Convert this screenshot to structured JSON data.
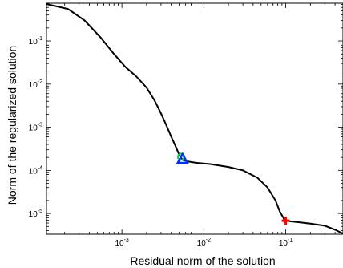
{
  "chart_data": {
    "type": "line",
    "title": "",
    "xlabel": "Residual norm of the solution",
    "ylabel": "Norm of the regularized solution",
    "x_scale": "log",
    "y_scale": "log",
    "xlim": [
      0.00012,
      0.5
    ],
    "ylim": [
      3.3e-06,
      0.75
    ],
    "x_ticks": [
      {
        "value": 0.001,
        "base": "10",
        "exp": "-3"
      },
      {
        "value": 0.01,
        "base": "10",
        "exp": "-2"
      },
      {
        "value": 0.1,
        "base": "10",
        "exp": "-1"
      }
    ],
    "y_ticks": [
      {
        "value": 1e-05,
        "base": "10",
        "exp": "-5"
      },
      {
        "value": 0.0001,
        "base": "10",
        "exp": "-4"
      },
      {
        "value": 0.001,
        "base": "10",
        "exp": "-3"
      },
      {
        "value": 0.01,
        "base": "10",
        "exp": "-2"
      },
      {
        "value": 0.1,
        "base": "10",
        "exp": "-1"
      }
    ],
    "grid": false,
    "legend": "none",
    "series": [
      {
        "color": "#000000",
        "x": [
          0.00012,
          0.00022,
          0.00035,
          0.00055,
          0.0008,
          0.0011,
          0.0015,
          0.002,
          0.0025,
          0.003,
          0.0035,
          0.004,
          0.0045,
          0.005,
          0.0055,
          0.0065,
          0.008,
          0.012,
          0.02,
          0.03,
          0.045,
          0.06,
          0.075,
          0.085,
          0.095,
          0.1,
          0.11,
          0.15,
          0.2,
          0.3,
          0.4,
          0.5
        ],
        "y": [
          0.72,
          0.55,
          0.3,
          0.12,
          0.05,
          0.025,
          0.015,
          0.0083,
          0.0042,
          0.0021,
          0.0011,
          0.0006,
          0.00037,
          0.00023,
          0.000175,
          0.00016,
          0.00015,
          0.00014,
          0.00012,
          0.0001,
          6.8e-05,
          4e-05,
          2e-05,
          1.1e-05,
          7.5e-06,
          6.8e-06,
          6.6e-06,
          6.2e-06,
          5.8e-06,
          5.2e-06,
          4.2e-06,
          3.4e-06
        ]
      }
    ],
    "markers": [
      {
        "shape": "circle",
        "x": 0.0054,
        "y": 0.00019,
        "color": "#00cc33"
      },
      {
        "shape": "triangle",
        "x": 0.0055,
        "y": 0.000185,
        "color": "#0033ff"
      },
      {
        "shape": "cross",
        "x": 0.1,
        "y": 6.8e-06,
        "color": "#ff0000"
      }
    ]
  }
}
